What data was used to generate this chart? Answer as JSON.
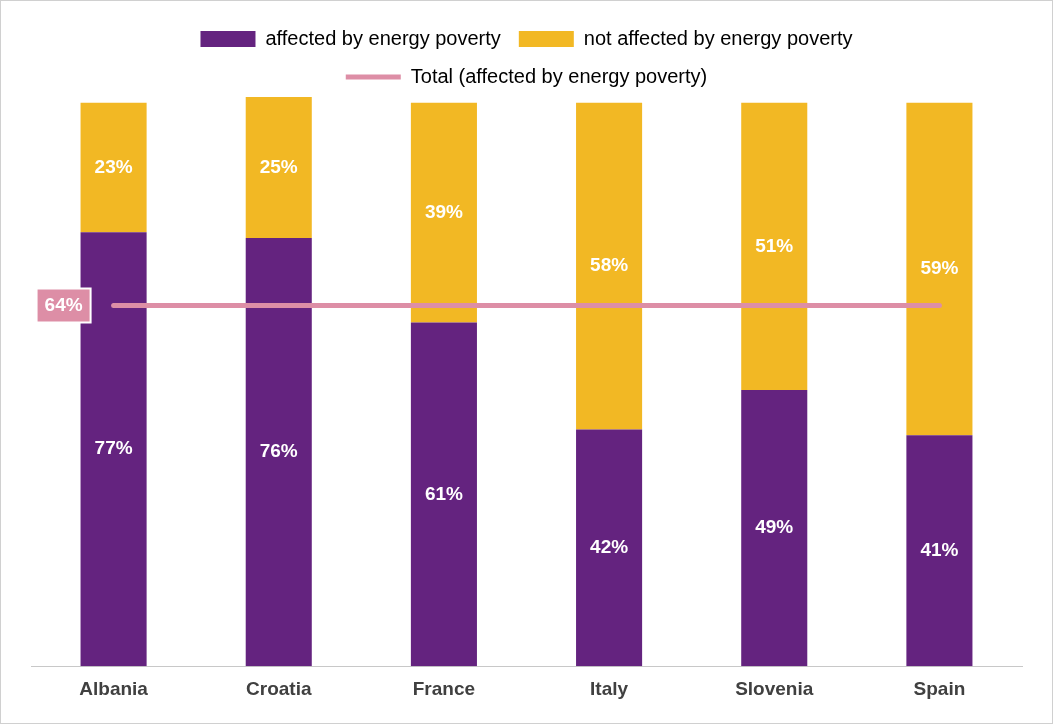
{
  "chart_data": {
    "type": "bar",
    "stacked": true,
    "categories": [
      "Albania",
      "Croatia",
      "France",
      "Italy",
      "Slovenia",
      "Spain"
    ],
    "ylim": [
      0,
      101
    ],
    "tick_labels": "x",
    "grid": false,
    "legend": "top",
    "series": [
      {
        "name": "affected by energy poverty",
        "color": "#64237f",
        "values": [
          77,
          76,
          61,
          42,
          49,
          41
        ],
        "value_labels": [
          "77%",
          "76%",
          "61%",
          "42%",
          "49%",
          "41%"
        ]
      },
      {
        "name": "not affected by energy poverty",
        "color": "#f2b824",
        "values": [
          23,
          25,
          39,
          58,
          51,
          59
        ],
        "value_labels": [
          "23%",
          "25%",
          "39%",
          "58%",
          "51%",
          "59%"
        ]
      },
      {
        "name": "Total (affected by energy poverty)",
        "type": "line",
        "color": "#dd8ea6",
        "values": [
          64,
          64,
          64,
          64,
          64,
          64
        ],
        "value_labels": [
          "64%",
          null,
          null,
          null,
          null,
          null
        ]
      }
    ]
  }
}
